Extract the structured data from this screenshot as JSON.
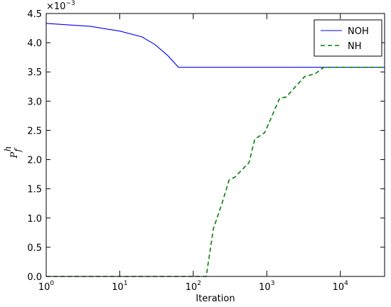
{
  "chart_data": {
    "type": "line",
    "xlabel": "Iteration",
    "ylabel": {
      "base": "P",
      "sub": "f",
      "sup": "h"
    },
    "multiplier": {
      "base": "×10",
      "exponent": "−3"
    },
    "xscale": "log",
    "xlim": [
      1,
      40000
    ],
    "xticks": [
      {
        "value": 1,
        "base": "10",
        "exponent": "0"
      },
      {
        "value": 10,
        "base": "10",
        "exponent": "1"
      },
      {
        "value": 100,
        "base": "10",
        "exponent": "2"
      },
      {
        "value": 1000,
        "base": "10",
        "exponent": "3"
      },
      {
        "value": 10000,
        "base": "10",
        "exponent": "4"
      }
    ],
    "ylim": [
      0,
      4.5
    ],
    "yticks": [
      {
        "value": 0,
        "label": "0.0"
      },
      {
        "value": 0.5,
        "label": "0.5"
      },
      {
        "value": 1,
        "label": "1.0"
      },
      {
        "value": 1.5,
        "label": "1.5"
      },
      {
        "value": 2,
        "label": "2.0"
      },
      {
        "value": 2.5,
        "label": "2.5"
      },
      {
        "value": 3,
        "label": "3.0"
      },
      {
        "value": 3.5,
        "label": "3.5"
      },
      {
        "value": 4,
        "label": "4.0"
      },
      {
        "value": 4.5,
        "label": "4.5"
      }
    ],
    "legend": "upper right",
    "series": [
      {
        "name": "NOH",
        "color": "#0000ff",
        "dash": "solid",
        "x": [
          1,
          4,
          7,
          10,
          20,
          30,
          45,
          63,
          40000
        ],
        "values": [
          4.33,
          4.28,
          4.23,
          4.2,
          4.1,
          3.97,
          3.78,
          3.58,
          3.58
        ]
      },
      {
        "name": "NH",
        "color": "#008000",
        "dash": "dashed",
        "x": [
          1,
          150,
          188,
          246,
          307,
          368,
          574,
          686,
          937,
          1497,
          1829,
          3266,
          4563,
          5960,
          40000
        ],
        "values": [
          0,
          0,
          0.82,
          1.25,
          1.65,
          1.7,
          1.95,
          2.35,
          2.46,
          3.05,
          3.07,
          3.42,
          3.47,
          3.58,
          3.58
        ]
      }
    ]
  }
}
